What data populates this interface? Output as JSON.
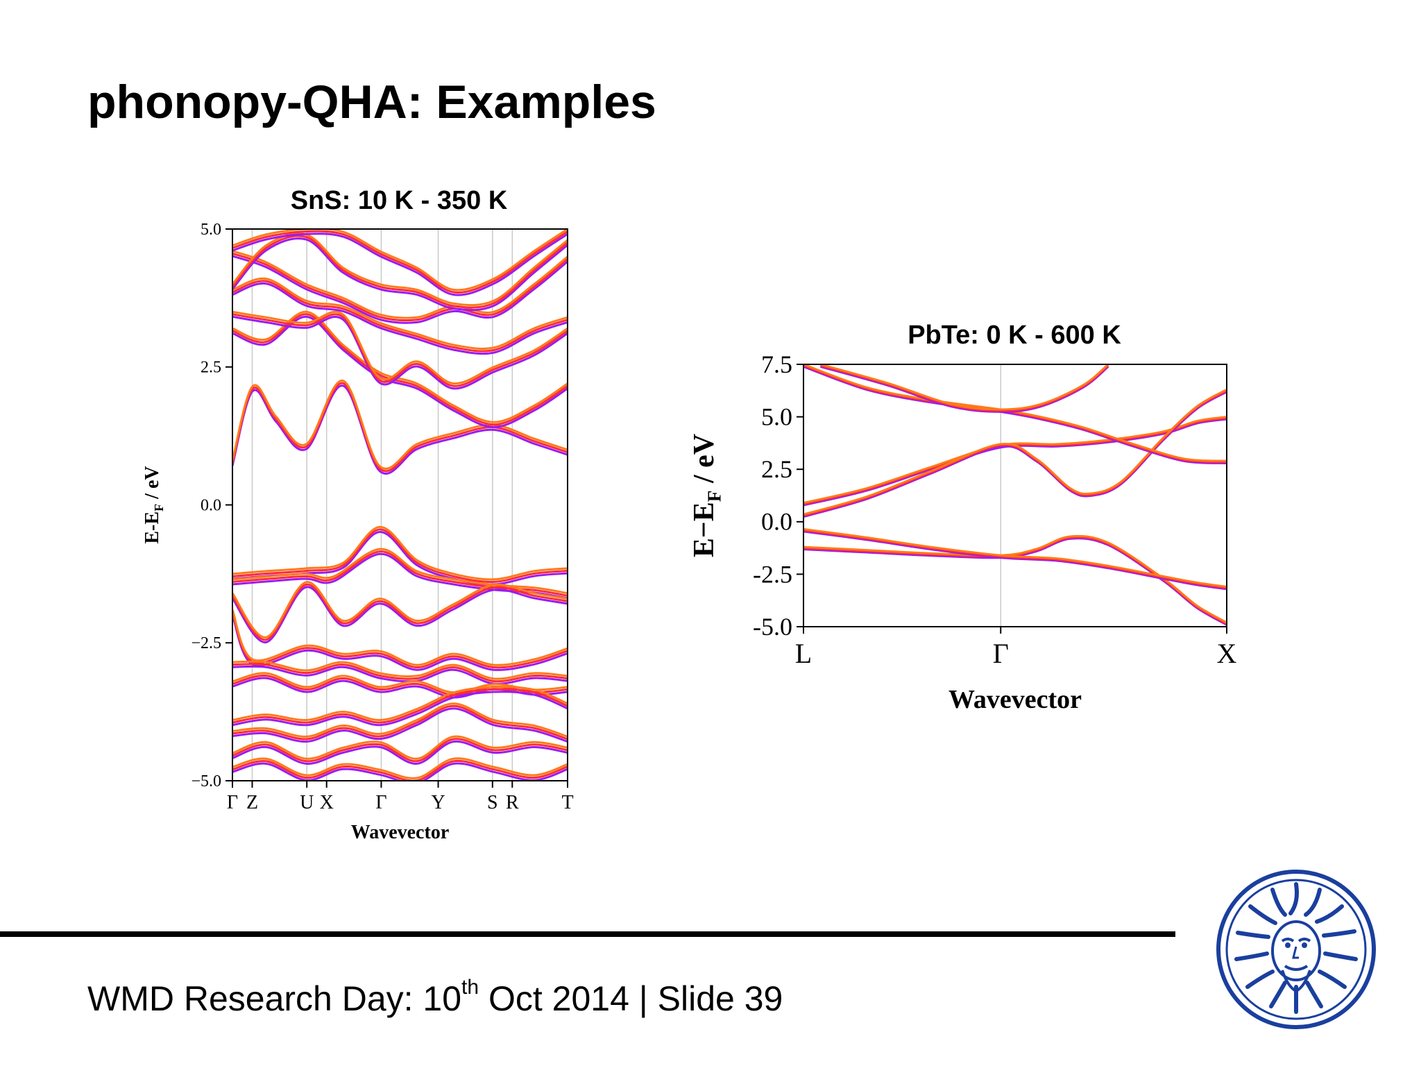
{
  "slide": {
    "title": "phonopy-QHA: Examples",
    "footer_main": "WMD Research Day: 10",
    "footer_sup": "th",
    "footer_rest": " Oct 2014 | Slide 39",
    "logo_icon": "university-seal-icon"
  },
  "colors": {
    "band_low_T": "#ff7a1a",
    "band_mid_T": "#ff2a3a",
    "band_high_T": "#9a1cf0"
  },
  "chart_data": [
    {
      "type": "line",
      "panel_title": "SnS: 10 K - 350 K",
      "xlabel": "Wavevector",
      "ylabel": "E-E_F / eV",
      "ylabel_main": "E-E",
      "ylabel_sub": "F",
      "ylabel_tail": " / eV",
      "ylim": [
        -5.0,
        5.0
      ],
      "yticks": [
        "5.0",
        "2.5",
        "0.0",
        "−2.5",
        "−5.0"
      ],
      "ytick_values": [
        5.0,
        2.5,
        0.0,
        -2.5,
        -5.0
      ],
      "kpoints": [
        {
          "label": "Γ",
          "x": 0.0
        },
        {
          "label": "Z",
          "x": 0.059
        },
        {
          "label": "U",
          "x": 0.222
        },
        {
          "label": "X",
          "x": 0.281
        },
        {
          "label": "Γ",
          "x": 0.444
        },
        {
          "label": "Y",
          "x": 0.614
        },
        {
          "label": "S",
          "x": 0.776
        },
        {
          "label": "R",
          "x": 0.835
        },
        {
          "label": "T",
          "x": 1.0
        }
      ],
      "temperature_copies": 3,
      "series": [
        {
          "values": [
            [
              0,
              -1.25
            ],
            [
              0.1,
              -1.2
            ],
            [
              0.22,
              -1.15
            ],
            [
              0.33,
              -1.05
            ],
            [
              0.44,
              -0.4
            ],
            [
              0.55,
              -1.0
            ],
            [
              0.66,
              -1.25
            ],
            [
              0.78,
              -1.35
            ],
            [
              0.9,
              -1.2
            ],
            [
              1.0,
              -1.15
            ]
          ]
        },
        {
          "values": [
            [
              0,
              -1.35
            ],
            [
              0.1,
              -1.3
            ],
            [
              0.22,
              -1.25
            ],
            [
              0.3,
              -1.3
            ],
            [
              0.44,
              -0.8
            ],
            [
              0.55,
              -1.2
            ],
            [
              0.66,
              -1.35
            ],
            [
              0.78,
              -1.45
            ],
            [
              0.9,
              -1.5
            ],
            [
              1.0,
              -1.6
            ]
          ]
        },
        {
          "values": [
            [
              0,
              -1.6
            ],
            [
              0.1,
              -2.4
            ],
            [
              0.22,
              -1.4
            ],
            [
              0.33,
              -2.1
            ],
            [
              0.44,
              -1.7
            ],
            [
              0.55,
              -2.1
            ],
            [
              0.66,
              -1.8
            ],
            [
              0.78,
              -1.45
            ],
            [
              0.9,
              -1.6
            ],
            [
              1.0,
              -1.7
            ]
          ]
        },
        {
          "values": [
            [
              0,
              -1.9
            ],
            [
              0.06,
              -2.8
            ],
            [
              0.22,
              -2.55
            ],
            [
              0.33,
              -2.7
            ],
            [
              0.44,
              -2.65
            ],
            [
              0.55,
              -2.9
            ],
            [
              0.66,
              -2.7
            ],
            [
              0.78,
              -2.9
            ],
            [
              0.9,
              -2.8
            ],
            [
              1.0,
              -2.6
            ]
          ]
        },
        {
          "values": [
            [
              0,
              -2.85
            ],
            [
              0.1,
              -2.85
            ],
            [
              0.22,
              -3.0
            ],
            [
              0.33,
              -2.85
            ],
            [
              0.44,
              -3.05
            ],
            [
              0.55,
              -3.1
            ],
            [
              0.66,
              -2.9
            ],
            [
              0.78,
              -3.15
            ],
            [
              0.9,
              -3.05
            ],
            [
              1.0,
              -3.1
            ]
          ]
        },
        {
          "values": [
            [
              0,
              -3.2
            ],
            [
              0.1,
              -3.05
            ],
            [
              0.22,
              -3.3
            ],
            [
              0.33,
              -3.1
            ],
            [
              0.44,
              -3.3
            ],
            [
              0.55,
              -3.2
            ],
            [
              0.66,
              -3.4
            ],
            [
              0.78,
              -3.25
            ],
            [
              0.9,
              -3.35
            ],
            [
              1.0,
              -3.3
            ]
          ]
        },
        {
          "values": [
            [
              0,
              -3.9
            ],
            [
              0.1,
              -3.8
            ],
            [
              0.22,
              -3.9
            ],
            [
              0.33,
              -3.75
            ],
            [
              0.44,
              -3.9
            ],
            [
              0.55,
              -3.7
            ],
            [
              0.66,
              -3.4
            ],
            [
              0.78,
              -3.3
            ],
            [
              0.9,
              -3.35
            ],
            [
              1.0,
              -3.6
            ]
          ]
        },
        {
          "values": [
            [
              0,
              -4.1
            ],
            [
              0.1,
              -4.05
            ],
            [
              0.22,
              -4.2
            ],
            [
              0.33,
              -4.0
            ],
            [
              0.44,
              -4.15
            ],
            [
              0.55,
              -3.9
            ],
            [
              0.66,
              -3.6
            ],
            [
              0.78,
              -3.9
            ],
            [
              0.9,
              -4.0
            ],
            [
              1.0,
              -4.2
            ]
          ]
        },
        {
          "values": [
            [
              0,
              -4.5
            ],
            [
              0.1,
              -4.3
            ],
            [
              0.22,
              -4.6
            ],
            [
              0.33,
              -4.4
            ],
            [
              0.44,
              -4.3
            ],
            [
              0.55,
              -4.6
            ],
            [
              0.66,
              -4.2
            ],
            [
              0.78,
              -4.4
            ],
            [
              0.9,
              -4.3
            ],
            [
              1.0,
              -4.4
            ]
          ]
        },
        {
          "values": [
            [
              0,
              -4.75
            ],
            [
              0.1,
              -4.6
            ],
            [
              0.22,
              -4.9
            ],
            [
              0.33,
              -4.7
            ],
            [
              0.44,
              -4.8
            ],
            [
              0.55,
              -4.95
            ],
            [
              0.66,
              -4.6
            ],
            [
              0.78,
              -4.75
            ],
            [
              0.9,
              -4.9
            ],
            [
              1.0,
              -4.7
            ]
          ]
        },
        {
          "values": [
            [
              0,
              0.8
            ],
            [
              0.06,
              2.15
            ],
            [
              0.13,
              1.6
            ],
            [
              0.22,
              1.1
            ],
            [
              0.33,
              2.25
            ],
            [
              0.44,
              0.7
            ],
            [
              0.55,
              1.1
            ],
            [
              0.66,
              1.3
            ],
            [
              0.78,
              1.45
            ],
            [
              0.9,
              1.2
            ],
            [
              1.0,
              1.0
            ]
          ]
        },
        {
          "values": [
            [
              0,
              3.2
            ],
            [
              0.1,
              3.0
            ],
            [
              0.22,
              3.5
            ],
            [
              0.33,
              2.9
            ],
            [
              0.44,
              2.4
            ],
            [
              0.55,
              2.2
            ],
            [
              0.66,
              1.8
            ],
            [
              0.78,
              1.5
            ],
            [
              0.9,
              1.8
            ],
            [
              1.0,
              2.2
            ]
          ]
        },
        {
          "values": [
            [
              0,
              3.5
            ],
            [
              0.1,
              3.4
            ],
            [
              0.22,
              3.3
            ],
            [
              0.33,
              3.45
            ],
            [
              0.44,
              2.3
            ],
            [
              0.55,
              2.6
            ],
            [
              0.66,
              2.2
            ],
            [
              0.78,
              2.5
            ],
            [
              0.9,
              2.8
            ],
            [
              1.0,
              3.2
            ]
          ]
        },
        {
          "values": [
            [
              0,
              3.9
            ],
            [
              0.1,
              4.1
            ],
            [
              0.22,
              3.7
            ],
            [
              0.33,
              3.6
            ],
            [
              0.44,
              3.3
            ],
            [
              0.55,
              3.1
            ],
            [
              0.66,
              2.9
            ],
            [
              0.78,
              2.85
            ],
            [
              0.9,
              3.2
            ],
            [
              1.0,
              3.4
            ]
          ]
        },
        {
          "values": [
            [
              0,
              4.6
            ],
            [
              0.1,
              4.4
            ],
            [
              0.22,
              4.0
            ],
            [
              0.33,
              3.75
            ],
            [
              0.44,
              3.45
            ],
            [
              0.55,
              3.4
            ],
            [
              0.66,
              3.6
            ],
            [
              0.78,
              3.5
            ],
            [
              0.9,
              4.0
            ],
            [
              1.0,
              4.5
            ]
          ]
        },
        {
          "values": [
            [
              0,
              4.0
            ],
            [
              0.1,
              4.7
            ],
            [
              0.22,
              4.9
            ],
            [
              0.33,
              4.3
            ],
            [
              0.44,
              4.0
            ],
            [
              0.55,
              3.9
            ],
            [
              0.66,
              3.65
            ],
            [
              0.78,
              3.7
            ],
            [
              0.9,
              4.3
            ],
            [
              1.0,
              4.8
            ]
          ]
        },
        {
          "values": [
            [
              0,
              4.7
            ],
            [
              0.1,
              4.9
            ],
            [
              0.22,
              5.0
            ],
            [
              0.33,
              4.95
            ],
            [
              0.44,
              4.6
            ],
            [
              0.55,
              4.3
            ],
            [
              0.66,
              3.9
            ],
            [
              0.78,
              4.1
            ],
            [
              0.9,
              4.6
            ],
            [
              1.0,
              5.0
            ]
          ]
        }
      ]
    },
    {
      "type": "line",
      "panel_title": "PbTe: 0 K - 600 K",
      "xlabel": "Wavevector",
      "ylabel": "E−E_F / eV",
      "ylabel_main": "E−E",
      "ylabel_sub": "F",
      "ylabel_tail": " / eV",
      "ylim": [
        -5.0,
        7.5
      ],
      "yticks": [
        "7.5",
        "5.0",
        "2.5",
        "0.0",
        "-2.5",
        "-5.0"
      ],
      "ytick_values": [
        7.5,
        5.0,
        2.5,
        0.0,
        -2.5,
        -5.0
      ],
      "kpoints": [
        {
          "label": "L",
          "x": 0.0
        },
        {
          "label": "Γ",
          "x": 0.466
        },
        {
          "label": "X",
          "x": 1.0
        }
      ],
      "temperature_copies": 3,
      "series": [
        {
          "values": [
            [
              0,
              -1.2
            ],
            [
              0.15,
              -1.35
            ],
            [
              0.3,
              -1.5
            ],
            [
              0.466,
              -1.6
            ],
            [
              0.55,
              -1.3
            ],
            [
              0.63,
              -0.7
            ],
            [
              0.72,
              -1.0
            ],
            [
              0.85,
              -2.7
            ],
            [
              0.93,
              -4.0
            ],
            [
              1.0,
              -4.8
            ]
          ]
        },
        {
          "values": [
            [
              0,
              -0.35
            ],
            [
              0.15,
              -0.75
            ],
            [
              0.3,
              -1.2
            ],
            [
              0.466,
              -1.6
            ],
            [
              0.6,
              -1.75
            ],
            [
              0.72,
              -2.1
            ],
            [
              0.85,
              -2.6
            ],
            [
              0.93,
              -2.9
            ],
            [
              1.0,
              -3.1
            ]
          ]
        },
        {
          "values": [
            [
              0,
              0.9
            ],
            [
              0.15,
              1.6
            ],
            [
              0.3,
              2.6
            ],
            [
              0.466,
              3.65
            ],
            [
              0.6,
              3.7
            ],
            [
              0.72,
              3.9
            ],
            [
              0.85,
              4.3
            ],
            [
              0.93,
              4.8
            ],
            [
              1.0,
              5.0
            ]
          ]
        },
        {
          "values": [
            [
              0,
              0.35
            ],
            [
              0.15,
              1.2
            ],
            [
              0.3,
              2.4
            ],
            [
              0.466,
              3.7
            ],
            [
              0.55,
              3.0
            ],
            [
              0.63,
              1.6
            ],
            [
              0.68,
              1.35
            ],
            [
              0.75,
              1.9
            ],
            [
              0.85,
              4.0
            ],
            [
              0.93,
              5.5
            ],
            [
              1.0,
              6.3
            ]
          ]
        },
        {
          "values": [
            [
              0,
              7.5
            ],
            [
              0.15,
              6.4
            ],
            [
              0.3,
              5.8
            ],
            [
              0.466,
              5.35
            ],
            [
              0.56,
              5.0
            ],
            [
              0.66,
              4.5
            ],
            [
              0.78,
              3.7
            ],
            [
              0.9,
              3.0
            ],
            [
              1.0,
              2.9
            ]
          ]
        },
        {
          "values": [
            [
              0.04,
              7.5
            ],
            [
              0.2,
              6.6
            ],
            [
              0.35,
              5.6
            ],
            [
              0.466,
              5.35
            ],
            [
              0.56,
              5.6
            ],
            [
              0.66,
              6.5
            ],
            [
              0.72,
              7.5
            ]
          ]
        }
      ]
    }
  ]
}
